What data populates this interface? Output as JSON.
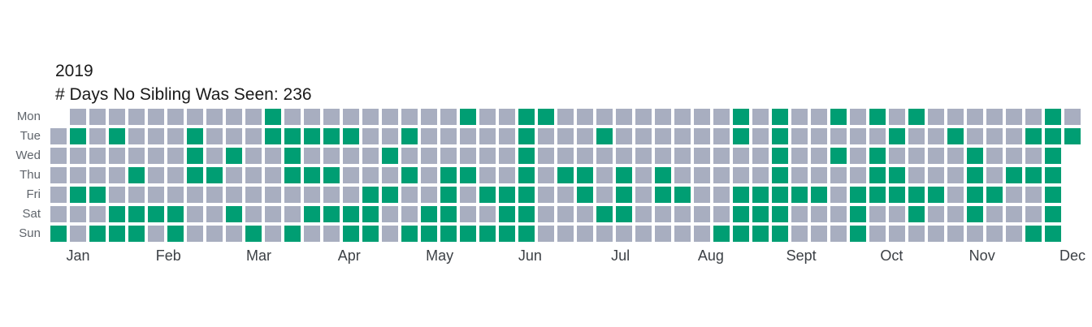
{
  "page": {
    "background": "#ffffff"
  },
  "header": {
    "title": "2019",
    "subtitle": "# Days No Sibling Was Seen: 236"
  },
  "chart_data": {
    "type": "heatmap",
    "variant": "calendar-year-grid",
    "title": "2019",
    "subtitle": "# Days No Sibling Was Seen: 236",
    "count_shown": 236,
    "row_labels": [
      "Mon",
      "Tue",
      "Wed",
      "Thu",
      "Fri",
      "Sat",
      "Sun"
    ],
    "month_labels": [
      "Jan",
      "Feb",
      "Mar",
      "Apr",
      "May",
      "Jun",
      "Jul",
      "Aug",
      "Sept",
      "Oct",
      "Nov",
      "Dec"
    ],
    "colors": {
      "green": "#009E73",
      "gray": "#A8AEC0"
    },
    "cell_encoding": {
      "G": "green",
      "-": "gray",
      ".": "no-cell"
    },
    "weeks_order": "columns are weeks left-to-right; each string is Mon..Sun top-to-bottom",
    "weeks": [
      ".-----G",
      "-G--G--",
      "----G-G",
      "-G---GG",
      "---G-GG",
      "-----G-",
      "-----GG",
      "-GGG---",
      "---G---",
      "--G--G-",
      "------G",
      "GG-----",
      "-GGG--G",
      "-G-G-G-",
      "-G-G-G-",
      "-G---GG",
      "----GGG",
      "--G-G--",
      "-G-G--G",
      "-----GG",
      "---GGGG",
      "G--G--G",
      "----G-G",
      "----GGG",
      "GGGGGGG",
      "G------",
      "---G---",
      "---GG--",
      "-G---G-",
      "---GGG-",
      "-------",
      "---GG--",
      "----G--",
      "-------",
      "------G",
      "GG--GGG",
      "----GGG",
      "GGGGGGG",
      "----G--",
      "----G--",
      "G-G----",
      "----GGG",
      "G-GGG--",
      "-G-GG--",
      "G---GG-",
      "----G--",
      "-G-----",
      "--GGGG-",
      "----G--",
      "---G---",
      "-G-G--G",
      "GGGGGGG",
      "-G....."
    ],
    "legend_position": "none",
    "grid_lines": "off"
  }
}
